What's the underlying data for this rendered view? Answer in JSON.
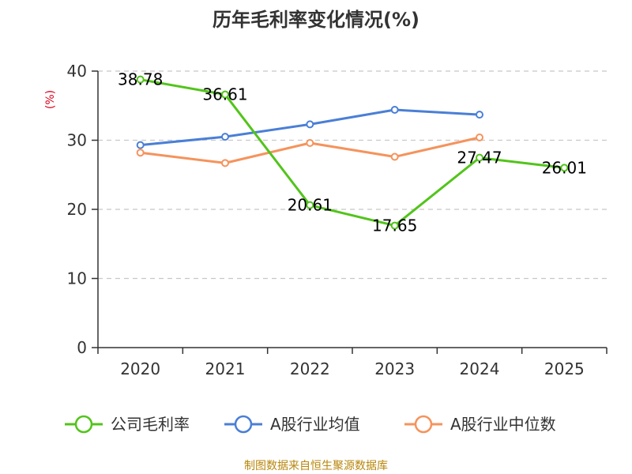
{
  "chart_data": {
    "type": "line",
    "title": "历年毛利率变化情况(%)",
    "xlabel": "",
    "ylabel": "(%)",
    "categories": [
      "2020",
      "2021",
      "2022",
      "2023",
      "2024",
      "2025"
    ],
    "ylim": [
      0,
      40
    ],
    "yticks": [
      0,
      10,
      20,
      30,
      40
    ],
    "grid": true,
    "legend_position": "bottom",
    "series": [
      {
        "name": "公司毛利率",
        "color": "#52c41a",
        "values": [
          38.78,
          36.61,
          20.61,
          17.65,
          27.47,
          26.01
        ],
        "labels": [
          "38.78",
          "36.61",
          "20.61",
          "17.65",
          "27.47",
          "26.01"
        ]
      },
      {
        "name": "A股行业均值",
        "color": "#4a7fd6",
        "values": [
          29.3,
          30.5,
          32.3,
          34.4,
          33.7,
          null
        ]
      },
      {
        "name": "A股行业中位数",
        "color": "#f5935c",
        "values": [
          28.2,
          26.7,
          29.6,
          27.6,
          30.4,
          null
        ]
      }
    ],
    "source": "制图数据来自恒生聚源数据库"
  }
}
